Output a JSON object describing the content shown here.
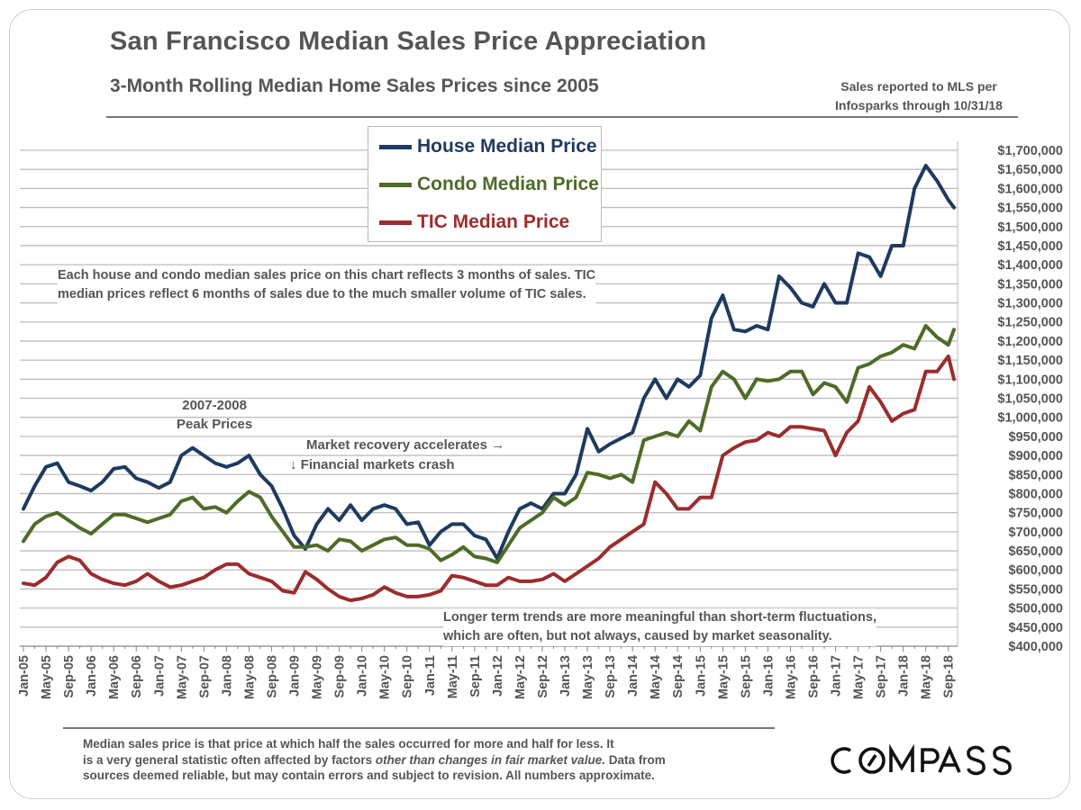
{
  "header": {
    "title": "San Francisco Median Sales Price Appreciation",
    "subtitle": "3-Month Rolling Median Home Sales Prices since 2005",
    "source_line1": "Sales reported to MLS per",
    "source_line2": "Infosparks through 10/31/18"
  },
  "annotations": {
    "methodology_line1": "Each house and condo median sales price on this chart reflects 3 months of sales. TIC",
    "methodology_line2": "median prices reflect 6 months of sales due to the much smaller volume of TIC sales.",
    "peak_line1": "2007-2008",
    "peak_line2": "Peak Prices",
    "recovery": "Market recovery accelerates →",
    "crash": "↓ Financial markets crash",
    "trend_line1": "Longer term trends are more meaningful than short-term fluctuations,",
    "trend_line2": "which are often, but not always, caused by market seasonality."
  },
  "footer": {
    "line1": "Median sales price is that price at which half the sales occurred for more and half for less. It",
    "line2_a": "is a very general statistic often affected by factors ",
    "line2_italic": "other than changes in fair market value.",
    "line2_b": " Data from",
    "line3": "sources deemed reliable, but may contain errors and subject to revision. All numbers approximate."
  },
  "logo": {
    "text": "COMPASS"
  },
  "chart_data": {
    "type": "line",
    "title": "San Francisco Median Sales Price Appreciation",
    "subtitle": "3-Month Rolling Median Home Sales Prices since 2005",
    "ylim": [
      400000,
      1700000
    ],
    "y_tick_step": 50000,
    "y_tick_labels": [
      "$400,000",
      "$450,000",
      "$500,000",
      "$550,000",
      "$600,000",
      "$650,000",
      "$700,000",
      "$750,000",
      "$800,000",
      "$850,000",
      "$900,000",
      "$950,000",
      "$1,000,000",
      "$1,050,000",
      "$1,100,000",
      "$1,150,000",
      "$1,200,000",
      "$1,250,000",
      "$1,300,000",
      "$1,350,000",
      "$1,400,000",
      "$1,450,000",
      "$1,500,000",
      "$1,550,000",
      "$1,600,000",
      "$1,650,000",
      "$1,700,000"
    ],
    "y_axis_position": "right",
    "grid": true,
    "legend_placement": "top-center",
    "x_range": [
      "Jan-05",
      "Oct-18"
    ],
    "x_tick_labels": [
      "Jan-05",
      "May-05",
      "Sep-05",
      "Jan-06",
      "May-06",
      "Sep-06",
      "Jan-07",
      "May-07",
      "Sep-07",
      "Jan-08",
      "May-08",
      "Sep-08",
      "Jan-09",
      "May-09",
      "Sep-09",
      "Jan-10",
      "May-10",
      "Sep-10",
      "Jan-11",
      "May-11",
      "Sep-11",
      "Jan-12",
      "May-12",
      "Sep-12",
      "Jan-13",
      "May-13",
      "Sep-13",
      "Jan-14",
      "May-14",
      "Sep-14",
      "Jan-15",
      "May-15",
      "Sep-15",
      "Jan-16",
      "May-16",
      "Sep-16",
      "Jan-17",
      "May-17",
      "Sep-17",
      "Jan-18",
      "May-18",
      "Sep-18"
    ],
    "x": [
      "Jan-05",
      "Mar-05",
      "May-05",
      "Jul-05",
      "Sep-05",
      "Nov-05",
      "Jan-06",
      "Mar-06",
      "May-06",
      "Jul-06",
      "Sep-06",
      "Nov-06",
      "Jan-07",
      "Mar-07",
      "May-07",
      "Jul-07",
      "Sep-07",
      "Nov-07",
      "Jan-08",
      "Mar-08",
      "May-08",
      "Jul-08",
      "Sep-08",
      "Nov-08",
      "Jan-09",
      "Mar-09",
      "May-09",
      "Jul-09",
      "Sep-09",
      "Nov-09",
      "Jan-10",
      "Mar-10",
      "May-10",
      "Jul-10",
      "Sep-10",
      "Nov-10",
      "Jan-11",
      "Mar-11",
      "May-11",
      "Jul-11",
      "Sep-11",
      "Nov-11",
      "Jan-12",
      "Mar-12",
      "May-12",
      "Jul-12",
      "Sep-12",
      "Nov-12",
      "Jan-13",
      "Mar-13",
      "May-13",
      "Jul-13",
      "Sep-13",
      "Nov-13",
      "Jan-14",
      "Mar-14",
      "May-14",
      "Jul-14",
      "Sep-14",
      "Nov-14",
      "Jan-15",
      "Mar-15",
      "May-15",
      "Jul-15",
      "Sep-15",
      "Nov-15",
      "Jan-16",
      "Mar-16",
      "May-16",
      "Jul-16",
      "Sep-16",
      "Nov-16",
      "Jan-17",
      "Mar-17",
      "May-17",
      "Jul-17",
      "Sep-17",
      "Nov-17",
      "Jan-18",
      "Mar-18",
      "May-18",
      "Jul-18",
      "Sep-18",
      "Oct-18"
    ],
    "series": [
      {
        "name": "House Median Price",
        "color": "#1f3a5f",
        "values": [
          760000,
          820000,
          870000,
          880000,
          830000,
          820000,
          808000,
          830000,
          865000,
          870000,
          840000,
          830000,
          815000,
          830000,
          900000,
          920000,
          900000,
          880000,
          870000,
          880000,
          900000,
          850000,
          820000,
          760000,
          690000,
          655000,
          720000,
          760000,
          730000,
          770000,
          730000,
          760000,
          770000,
          760000,
          720000,
          725000,
          665000,
          700000,
          720000,
          720000,
          690000,
          680000,
          630000,
          700000,
          760000,
          775000,
          760000,
          800000,
          800000,
          850000,
          970000,
          910000,
          930000,
          945000,
          960000,
          1050000,
          1100000,
          1050000,
          1100000,
          1080000,
          1110000,
          1260000,
          1320000,
          1230000,
          1225000,
          1240000,
          1230000,
          1370000,
          1340000,
          1300000,
          1290000,
          1350000,
          1300000,
          1300000,
          1430000,
          1420000,
          1370000,
          1450000,
          1450000,
          1600000,
          1660000,
          1620000,
          1570000,
          1550000
        ]
      },
      {
        "name": "Condo Median Price",
        "color": "#4e6b28",
        "values": [
          675000,
          720000,
          740000,
          750000,
          730000,
          710000,
          695000,
          720000,
          745000,
          745000,
          735000,
          725000,
          735000,
          745000,
          780000,
          790000,
          760000,
          765000,
          750000,
          780000,
          805000,
          790000,
          740000,
          700000,
          660000,
          660000,
          665000,
          650000,
          680000,
          675000,
          650000,
          665000,
          680000,
          685000,
          665000,
          665000,
          655000,
          625000,
          640000,
          660000,
          635000,
          630000,
          620000,
          665000,
          710000,
          730000,
          750000,
          790000,
          770000,
          790000,
          855000,
          850000,
          840000,
          850000,
          830000,
          940000,
          950000,
          960000,
          950000,
          990000,
          965000,
          1080000,
          1120000,
          1100000,
          1050000,
          1100000,
          1095000,
          1100000,
          1120000,
          1120000,
          1060000,
          1090000,
          1080000,
          1040000,
          1130000,
          1140000,
          1160000,
          1170000,
          1190000,
          1180000,
          1240000,
          1210000,
          1190000,
          1230000
        ]
      },
      {
        "name": "TIC Median Price",
        "color": "#9b2d2d",
        "values": [
          565000,
          560000,
          580000,
          620000,
          635000,
          625000,
          590000,
          575000,
          565000,
          560000,
          570000,
          590000,
          570000,
          555000,
          560000,
          570000,
          580000,
          600000,
          615000,
          615000,
          590000,
          580000,
          570000,
          545000,
          540000,
          595000,
          575000,
          550000,
          530000,
          520000,
          525000,
          535000,
          555000,
          540000,
          530000,
          530000,
          535000,
          545000,
          585000,
          580000,
          570000,
          560000,
          560000,
          580000,
          570000,
          570000,
          575000,
          590000,
          570000,
          590000,
          610000,
          630000,
          660000,
          680000,
          700000,
          720000,
          830000,
          800000,
          760000,
          760000,
          790000,
          790000,
          900000,
          920000,
          935000,
          940000,
          960000,
          950000,
          975000,
          975000,
          970000,
          965000,
          900000,
          960000,
          990000,
          1080000,
          1040000,
          990000,
          1010000,
          1020000,
          1120000,
          1120000,
          1160000,
          1100000
        ]
      }
    ]
  }
}
